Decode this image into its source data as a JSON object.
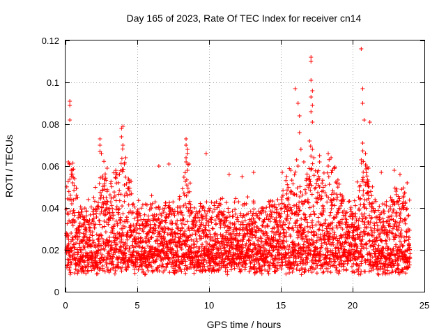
{
  "chart_data": {
    "type": "scatter",
    "title": "Day 165 of 2023, Rate Of TEC Index for receiver cn14",
    "xlabel": "GPS time / hours",
    "ylabel": "ROTI / TECUs",
    "xlim": [
      0,
      25
    ],
    "ylim": [
      0,
      0.12
    ],
    "xticks": [
      0,
      5,
      10,
      15,
      20,
      25
    ],
    "yticks": [
      0,
      0.02,
      0.04,
      0.06,
      0.08,
      0.1,
      0.12
    ],
    "xtick_labels": [
      "0",
      "5",
      "10",
      "15",
      "20",
      "25"
    ],
    "ytick_labels": [
      "0",
      "0.02",
      "0.04",
      "0.06",
      "0.08",
      "0.1",
      "0.12"
    ],
    "grid": true,
    "marker": "+",
    "color": "#ff0000",
    "series": [
      {
        "name": "ROTI",
        "points": [
          [
            0.2,
            0.062
          ],
          [
            0.3,
            0.091
          ],
          [
            0.3,
            0.089
          ],
          [
            0.3,
            0.082
          ],
          [
            0.4,
            0.058
          ],
          [
            0.5,
            0.052
          ],
          [
            2.4,
            0.073
          ],
          [
            2.4,
            0.07
          ],
          [
            2.4,
            0.067
          ],
          [
            2.5,
            0.066
          ],
          [
            2.9,
            0.059
          ],
          [
            3.9,
            0.078
          ],
          [
            4.0,
            0.079
          ],
          [
            3.9,
            0.074
          ],
          [
            4.0,
            0.07
          ],
          [
            4.2,
            0.064
          ],
          [
            4.1,
            0.061
          ],
          [
            6.5,
            0.06
          ],
          [
            7.2,
            0.061
          ],
          [
            8.4,
            0.073
          ],
          [
            8.4,
            0.07
          ],
          [
            8.5,
            0.068
          ],
          [
            8.5,
            0.066
          ],
          [
            8.4,
            0.064
          ],
          [
            8.6,
            0.061
          ],
          [
            8.5,
            0.058
          ],
          [
            9.8,
            0.066
          ],
          [
            11.4,
            0.056
          ],
          [
            12.3,
            0.055
          ],
          [
            13.1,
            0.057
          ],
          [
            15.1,
            0.057
          ],
          [
            15.4,
            0.055
          ],
          [
            15.7,
            0.058
          ],
          [
            16.0,
            0.097
          ],
          [
            16.2,
            0.09
          ],
          [
            16.3,
            0.084
          ],
          [
            16.3,
            0.076
          ],
          [
            16.4,
            0.068
          ],
          [
            16.1,
            0.063
          ],
          [
            16.2,
            0.06
          ],
          [
            16.6,
            0.062
          ],
          [
            17.1,
            0.112
          ],
          [
            17.1,
            0.11
          ],
          [
            17.1,
            0.101
          ],
          [
            17.2,
            0.096
          ],
          [
            17.1,
            0.093
          ],
          [
            17.2,
            0.089
          ],
          [
            17.1,
            0.086
          ],
          [
            17.2,
            0.081
          ],
          [
            17.0,
            0.072
          ],
          [
            17.2,
            0.068
          ],
          [
            17.3,
            0.064
          ],
          [
            17.7,
            0.065
          ],
          [
            17.7,
            0.062
          ],
          [
            18.3,
            0.066
          ],
          [
            18.5,
            0.064
          ],
          [
            18.3,
            0.06
          ],
          [
            18.6,
            0.058
          ],
          [
            20.6,
            0.116
          ],
          [
            20.7,
            0.097
          ],
          [
            20.7,
            0.09
          ],
          [
            20.8,
            0.082
          ],
          [
            20.7,
            0.071
          ],
          [
            20.9,
            0.066
          ],
          [
            20.6,
            0.063
          ],
          [
            21.2,
            0.081
          ],
          [
            21.1,
            0.059
          ],
          [
            22.0,
            0.057
          ],
          [
            22.9,
            0.058
          ],
          [
            23.3,
            0.056
          ],
          [
            23.8,
            0.052
          ]
        ]
      }
    ]
  }
}
